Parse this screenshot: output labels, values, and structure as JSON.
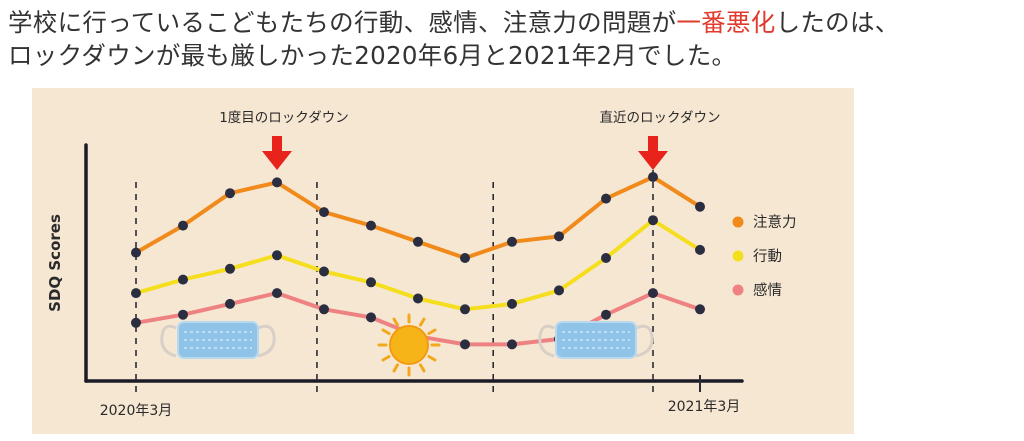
{
  "headline": {
    "line1_pre": "学校に行っているこどもたちの行動、感情、注意力の問題が",
    "line1_highlight": "一番悪化",
    "line1_post": "したのは、",
    "line2": "ロックダウンが最も厳しかった2020年6月と2021年2月でした。"
  },
  "colors": {
    "highlight": "#e23a2c",
    "panel_background": "#f6e7d3",
    "arrow": "#e8231c",
    "point": "#2b2d40"
  },
  "chart_data": {
    "type": "line",
    "ylabel": "SDQ Scores",
    "x_tick_labels": [
      "2020年3月",
      "2021年3月"
    ],
    "x": [
      0,
      1,
      2,
      3,
      4,
      5,
      6,
      7,
      8,
      9,
      10,
      11,
      12
    ],
    "series": [
      {
        "name": "注意力",
        "color": "#f08a1a",
        "values": [
          0.62,
          0.72,
          0.84,
          0.88,
          0.77,
          0.72,
          0.66,
          0.6,
          0.66,
          0.68,
          0.82,
          0.9,
          0.79
        ]
      },
      {
        "name": "行動",
        "color": "#f5de1e",
        "values": [
          0.47,
          0.52,
          0.56,
          0.61,
          0.55,
          0.51,
          0.45,
          0.41,
          0.43,
          0.48,
          0.6,
          0.74,
          0.63
        ]
      },
      {
        "name": "感情",
        "color": "#ee8282",
        "values": [
          0.36,
          0.39,
          0.43,
          0.47,
          0.41,
          0.38,
          0.31,
          0.28,
          0.28,
          0.3,
          0.39,
          0.47,
          0.41
        ]
      }
    ],
    "vlines_at": [
      0,
      3.85,
      7.6,
      11.0,
      12
    ],
    "dashed_vlines_at": [
      0,
      3.85,
      7.6,
      11.0
    ],
    "annotations": [
      {
        "text": "1度目のロックダウン",
        "x": 3
      },
      {
        "text": "直近のロックダウン",
        "x": 11
      }
    ],
    "legend_position": "right",
    "icons": [
      "mask-icon",
      "sun-icon",
      "mask-icon"
    ]
  }
}
